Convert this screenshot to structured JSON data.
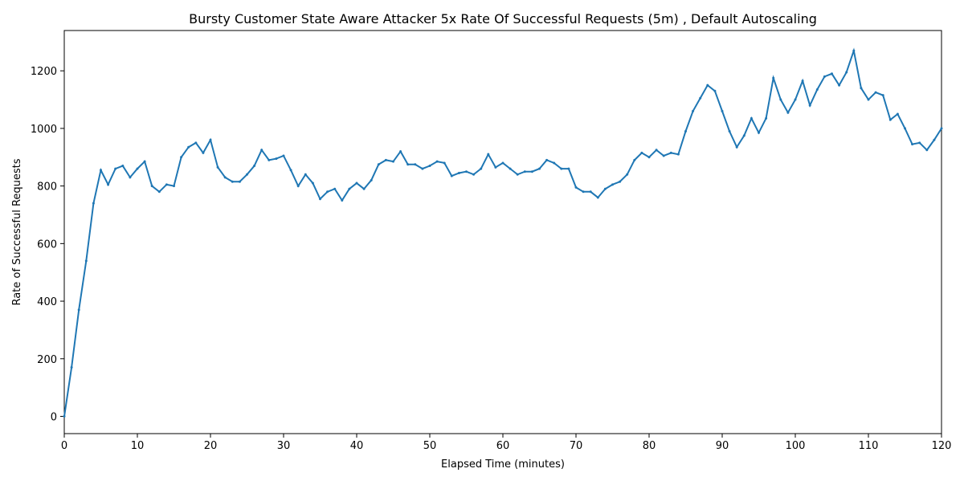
{
  "chart_data": {
    "type": "line",
    "title": "Bursty Customer State Aware Attacker 5x Rate Of Successful Requests (5m) , Default Autoscaling",
    "x_label": "Elapsed Time (minutes)",
    "y_label": "Rate of Successful Requests",
    "x": [
      0,
      1,
      2,
      3,
      4,
      5,
      6,
      7,
      8,
      9,
      10,
      11,
      12,
      13,
      14,
      15,
      16,
      17,
      18,
      19,
      20,
      21,
      22,
      23,
      24,
      25,
      26,
      27,
      28,
      29,
      30,
      31,
      32,
      33,
      34,
      35,
      36,
      37,
      38,
      39,
      40,
      41,
      42,
      43,
      44,
      45,
      46,
      47,
      48,
      49,
      50,
      51,
      52,
      53,
      54,
      55,
      56,
      57,
      58,
      59,
      60,
      61,
      62,
      63,
      64,
      65,
      66,
      67,
      68,
      69,
      70,
      71,
      72,
      73,
      74,
      75,
      76,
      77,
      78,
      79,
      80,
      81,
      82,
      83,
      84,
      85,
      86,
      87,
      88,
      89,
      90,
      91,
      92,
      93,
      94,
      95,
      96,
      97,
      98,
      99,
      100,
      101,
      102,
      103,
      104,
      105,
      106,
      107,
      108,
      109,
      110,
      111,
      112,
      113,
      114,
      115,
      116,
      117,
      118,
      119,
      120
    ],
    "series": [
      {
        "name": "Rate of Successful Requests",
        "color": "#1f77b4",
        "values": [
          0,
          170,
          370,
          540,
          740,
          855,
          805,
          860,
          870,
          830,
          860,
          885,
          800,
          780,
          805,
          800,
          900,
          935,
          950,
          915,
          960,
          865,
          830,
          815,
          815,
          840,
          870,
          925,
          890,
          895,
          905,
          855,
          800,
          840,
          810,
          755,
          780,
          790,
          750,
          790,
          810,
          790,
          820,
          875,
          890,
          885,
          920,
          875,
          875,
          860,
          870,
          885,
          880,
          835,
          845,
          850,
          840,
          860,
          910,
          865,
          880,
          860,
          840,
          850,
          850,
          860,
          890,
          880,
          860,
          860,
          795,
          780,
          780,
          760,
          790,
          805,
          815,
          840,
          890,
          915,
          900,
          925,
          905,
          915,
          910,
          990,
          1060,
          1105,
          1150,
          1130,
          1060,
          990,
          935,
          975,
          1035,
          985,
          1035,
          1175,
          1100,
          1055,
          1100,
          1165,
          1080,
          1135,
          1180,
          1190,
          1150,
          1195,
          1270,
          1140,
          1100,
          1125,
          1115,
          1030,
          1050,
          1000,
          945,
          950,
          925,
          960,
          1000
        ]
      }
    ],
    "xlim": [
      0,
      120
    ],
    "xticks": [
      0,
      10,
      20,
      30,
      40,
      50,
      60,
      70,
      80,
      90,
      100,
      110,
      120
    ],
    "ylim": [
      -60,
      1340
    ],
    "yticks": [
      0,
      200,
      400,
      600,
      800,
      1000,
      1200
    ],
    "grid": false
  }
}
